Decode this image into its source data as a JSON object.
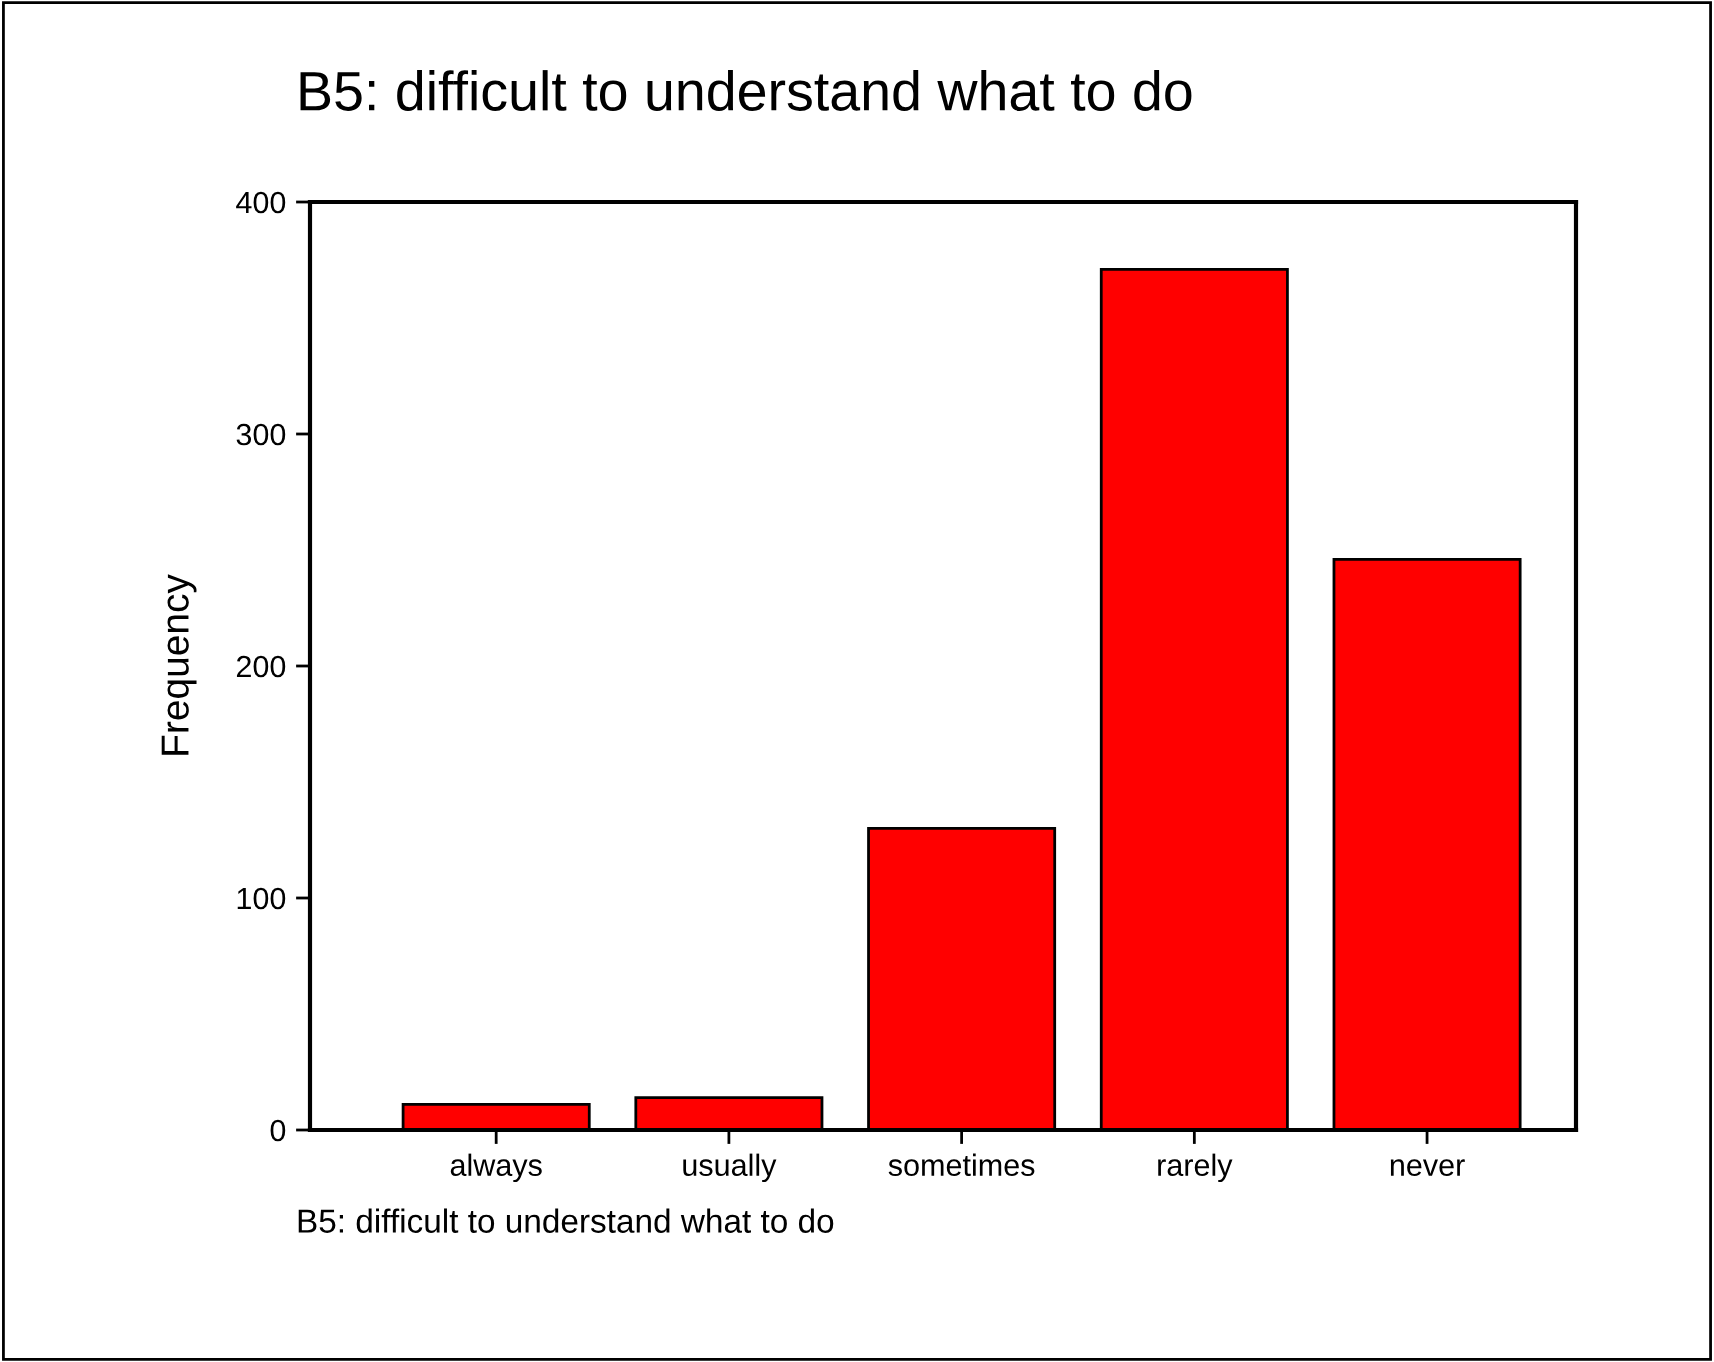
{
  "chart_data": {
    "type": "bar",
    "title": "B5: difficult to understand what to do",
    "ylabel": "Frequency",
    "categories": [
      "always",
      "usually",
      "sometimes",
      "rarely",
      "never"
    ],
    "values": [
      11,
      14,
      130,
      371,
      246
    ],
    "color": "#ff0000",
    "ylim": [
      0,
      400
    ],
    "yticks": [
      0,
      100,
      200,
      300,
      400
    ],
    "grid": false,
    "annotations": [
      "B5: difficult to understand what to do"
    ]
  }
}
